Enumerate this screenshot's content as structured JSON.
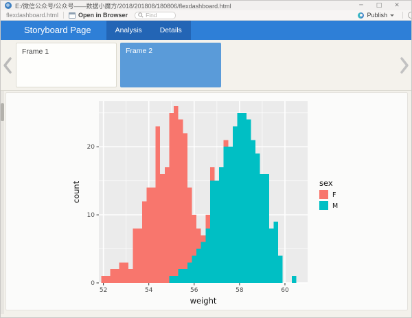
{
  "window": {
    "title": "E:/微信公众号/公众号——数据小魔方/2018/201808/180806/flexdashboard.html",
    "controls": {
      "minimize": "─",
      "maximize": "□",
      "close": "✕"
    }
  },
  "toolbar": {
    "file_tab": "flexdashboard.html",
    "open_in_browser": "Open in Browser",
    "find_placeholder": "Find",
    "publish_label": "Publish"
  },
  "icons": {
    "app": "blue-ball-icon",
    "open_in_browser": "browser-window-icon",
    "find": "magnifier-icon",
    "publish": "publish-swirl-icon",
    "prev": "chevron-left",
    "next": "chevron-right"
  },
  "navbar": {
    "brand": "Storyboard Page",
    "items": [
      {
        "label": "Analysis"
      },
      {
        "label": "Details"
      }
    ],
    "colors": {
      "bg": "#2e7fd7",
      "active_bg": "#2365b5"
    }
  },
  "storyboard": {
    "frames": [
      {
        "label": "Frame 1",
        "selected": false
      },
      {
        "label": "Frame 2",
        "selected": true
      }
    ],
    "selected_color": "#5a9bd9"
  },
  "chart_data": {
    "type": "bar",
    "subtype": "stacked-histogram",
    "title": "",
    "xlabel": "weight",
    "ylabel": "count",
    "xlim": [
      51.8,
      61.0
    ],
    "ylim": [
      0,
      26.7
    ],
    "x_ticks": [
      52,
      54,
      56,
      58,
      60
    ],
    "x_minor_ticks": [
      53,
      55,
      57,
      59
    ],
    "y_ticks": [
      0,
      10,
      20
    ],
    "y_minor_ticks": [
      5,
      15,
      25
    ],
    "grid": true,
    "panel_bg": "#EBEBEB",
    "grid_color": "#FFFFFF",
    "bin_start": 51.9,
    "bin_width": 0.2,
    "stack_order_bottom_to_top": [
      "M",
      "F"
    ],
    "legend": {
      "title": "sex",
      "position": "right",
      "entries": [
        {
          "label": "F",
          "color": "#F8766D"
        },
        {
          "label": "M",
          "color": "#00BFC4"
        }
      ]
    },
    "series": [
      {
        "name": "F",
        "color": "#F8766D",
        "values": [
          1,
          1,
          2,
          2,
          3,
          3,
          2,
          8,
          8,
          12,
          14,
          14,
          23,
          16,
          17,
          24,
          25,
          22,
          20,
          11,
          6,
          3,
          1,
          2,
          2,
          0,
          0,
          1,
          0,
          0,
          0,
          0,
          0,
          0,
          0,
          0,
          0,
          0,
          0,
          0,
          0,
          0,
          0
        ]
      },
      {
        "name": "M",
        "color": "#00BFC4",
        "values": [
          0,
          0,
          0,
          0,
          0,
          0,
          0,
          0,
          0,
          0,
          0,
          0,
          0,
          0,
          0,
          1,
          1,
          2,
          2,
          3,
          4,
          5,
          6,
          8,
          15,
          15,
          17,
          20,
          20,
          23,
          25,
          25,
          24,
          21,
          19,
          16,
          16,
          8,
          9,
          4,
          0,
          0,
          1
        ]
      }
    ]
  }
}
